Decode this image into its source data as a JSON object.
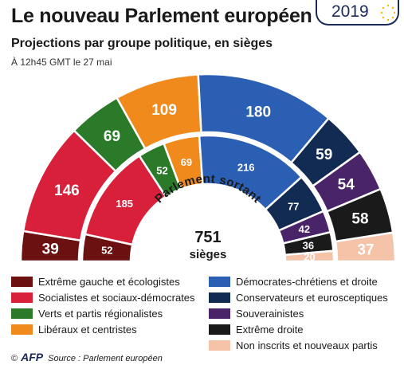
{
  "header": {
    "title": "Le nouveau Parlement européen",
    "subtitle": "Projections par groupe politique, en sièges",
    "timestamp": "À 12h45 GMT le 27 mai",
    "year": "2019"
  },
  "chart_data": {
    "type": "hemicycle",
    "title": "Le nouveau Parlement européen",
    "subtitle": "Projections par groupe politique, en sièges",
    "inner_arc_label": "Parlement sortant",
    "center_total": "751",
    "center_unit": "sièges",
    "groups": [
      {
        "name": "Extrême gauche et écologistes",
        "color": "#6b1111",
        "new_seats": 39,
        "outgoing_seats": 52
      },
      {
        "name": "Socialistes et sociaux-démocrates",
        "color": "#d8203a",
        "new_seats": 146,
        "outgoing_seats": 185
      },
      {
        "name": "Verts et partis régionalistes",
        "color": "#2a7a2a",
        "new_seats": 69,
        "outgoing_seats": 52
      },
      {
        "name": "Libéraux et centristes",
        "color": "#f08a1c",
        "new_seats": 109,
        "outgoing_seats": 69
      },
      {
        "name": "Démocrates-chrétiens et droite",
        "color": "#2a5fb4",
        "new_seats": 180,
        "outgoing_seats": 216
      },
      {
        "name": "Conservateurs et eurosceptiques",
        "color": "#122b52",
        "new_seats": 59,
        "outgoing_seats": 77
      },
      {
        "name": "Souverainistes",
        "color": "#4a2468",
        "new_seats": 54,
        "outgoing_seats": 42
      },
      {
        "name": "Extrême droite",
        "color": "#1a1a1a",
        "new_seats": 58,
        "outgoing_seats": 36
      },
      {
        "name": "Non inscrits et nouveaux partis",
        "color": "#f4c3a8",
        "new_seats": 37,
        "outgoing_seats": 20
      }
    ]
  },
  "source": {
    "copyright": "©",
    "agency": "AFP",
    "text": "Source : Parlement européen"
  }
}
